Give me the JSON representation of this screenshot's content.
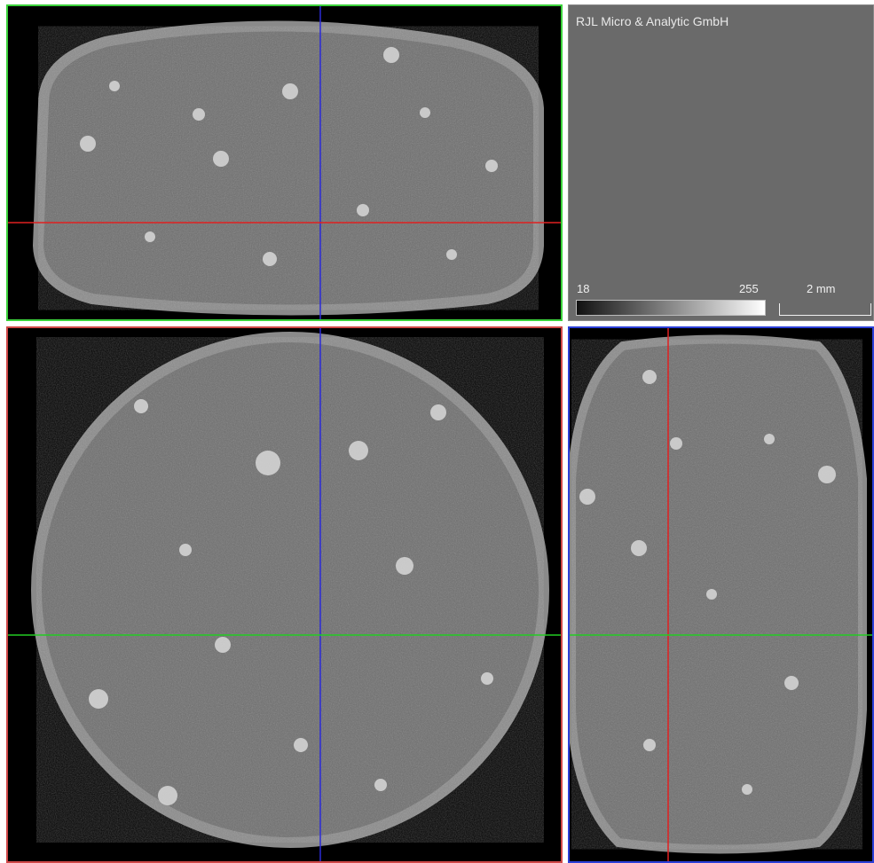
{
  "info_panel": {
    "company": "RJL Micro & Analytic GmbH",
    "colorbar_min": "18",
    "colorbar_max": "255",
    "scale_label": "2 mm"
  },
  "colors": {
    "xz_frame": "#3bd23b",
    "xy_frame": "#d04848",
    "yz_frame": "#2c3fd8",
    "crosshair_red": "#e02020",
    "crosshair_green": "#22cc22",
    "crosshair_blue": "#2a2ad8",
    "panel_background": "#6a6a6a"
  },
  "views": {
    "xz": "xz-slice",
    "xy": "xy-slice",
    "yz": "yz-slice"
  }
}
